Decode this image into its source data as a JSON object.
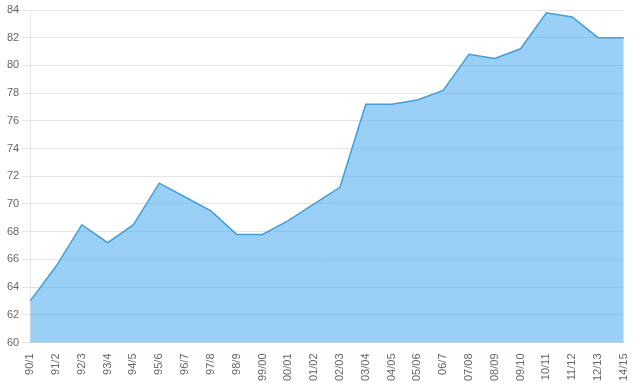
{
  "chart_data": {
    "type": "area",
    "categories": [
      "90/1",
      "91/2",
      "92/3",
      "93/4",
      "94/5",
      "95/6",
      "96/7",
      "97/8",
      "98/9",
      "99/00",
      "00/01",
      "01/02",
      "02/03",
      "03/04",
      "04/05",
      "05/06",
      "06/7",
      "07/08",
      "08/09",
      "09/10",
      "10/11",
      "11/12",
      "12/13",
      "14/15"
    ],
    "values": [
      63,
      65.5,
      68.5,
      67.2,
      68.5,
      71.5,
      70.5,
      69.5,
      67.8,
      67.8,
      68.8,
      70,
      71.2,
      77.2,
      77.2,
      77.5,
      78.2,
      80.8,
      80.5,
      81.2,
      83.8,
      83.5,
      82.0,
      82.0
    ],
    "ylim": [
      60,
      84
    ],
    "yticks": [
      60,
      62,
      64,
      66,
      68,
      70,
      72,
      74,
      76,
      78,
      80,
      82,
      84
    ],
    "grid": true
  }
}
